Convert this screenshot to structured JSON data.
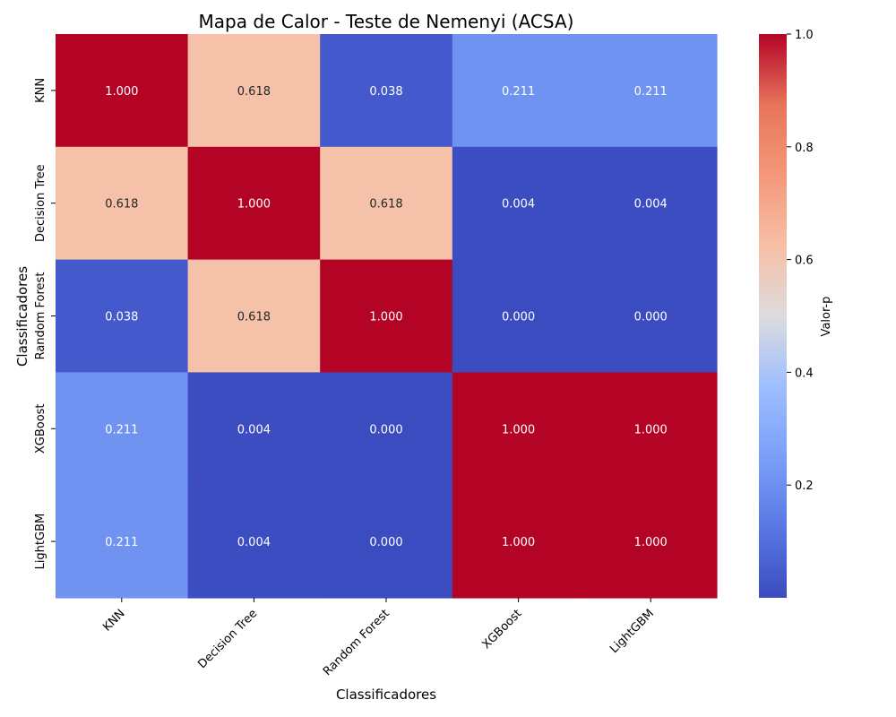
{
  "chart_data": {
    "type": "heatmap",
    "title": "Mapa de Calor - Teste de Nemenyi (ACSA)",
    "xlabel": "Classificadores",
    "ylabel": "Classificadores",
    "x_categories": [
      "KNN",
      "Decision Tree",
      "Random Forest",
      "XGBoost",
      "LightGBM"
    ],
    "y_categories": [
      "KNN",
      "Decision Tree",
      "Random Forest",
      "XGBoost",
      "LightGBM"
    ],
    "values": [
      [
        1.0,
        0.618,
        0.038,
        0.211,
        0.211
      ],
      [
        0.618,
        1.0,
        0.618,
        0.004,
        0.004
      ],
      [
        0.038,
        0.618,
        1.0,
        0.0,
        0.0
      ],
      [
        0.211,
        0.004,
        0.0,
        1.0,
        1.0
      ],
      [
        0.211,
        0.004,
        0.0,
        1.0,
        1.0
      ]
    ],
    "value_format": "3 decimals",
    "colormap": "coolwarm",
    "colorbar": {
      "label": "Valor-p",
      "range": [
        0.0,
        1.0
      ],
      "ticks": [
        0.2,
        0.4,
        0.6,
        0.8,
        1.0
      ],
      "tick_labels": [
        "0.2",
        "0.4",
        "0.6",
        "0.8",
        "1.0"
      ]
    },
    "grid": false,
    "legend": "colorbar-right"
  }
}
